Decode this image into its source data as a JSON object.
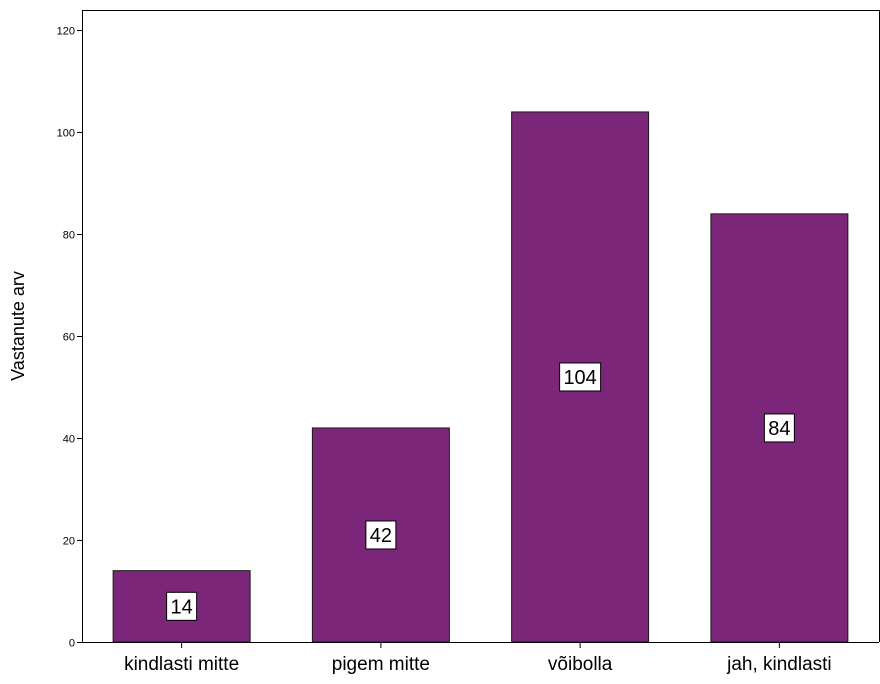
{
  "chart_data": {
    "type": "bar",
    "title": "",
    "xlabel": "",
    "ylabel": "Vastanute arv",
    "categories": [
      "kindlasti mitte",
      "pigem mitte",
      "võibolla",
      "jah, kindlasti"
    ],
    "values": [
      14,
      42,
      104,
      84
    ],
    "data_labels": [
      "14",
      "42",
      "104",
      "84"
    ],
    "ylim": [
      0,
      124
    ],
    "yticks": [
      0,
      20,
      40,
      60,
      80,
      100,
      120
    ],
    "grid": false,
    "legend": "none",
    "bar_color": "#7b2678",
    "bar_edge_color": "#1a1a1a"
  }
}
